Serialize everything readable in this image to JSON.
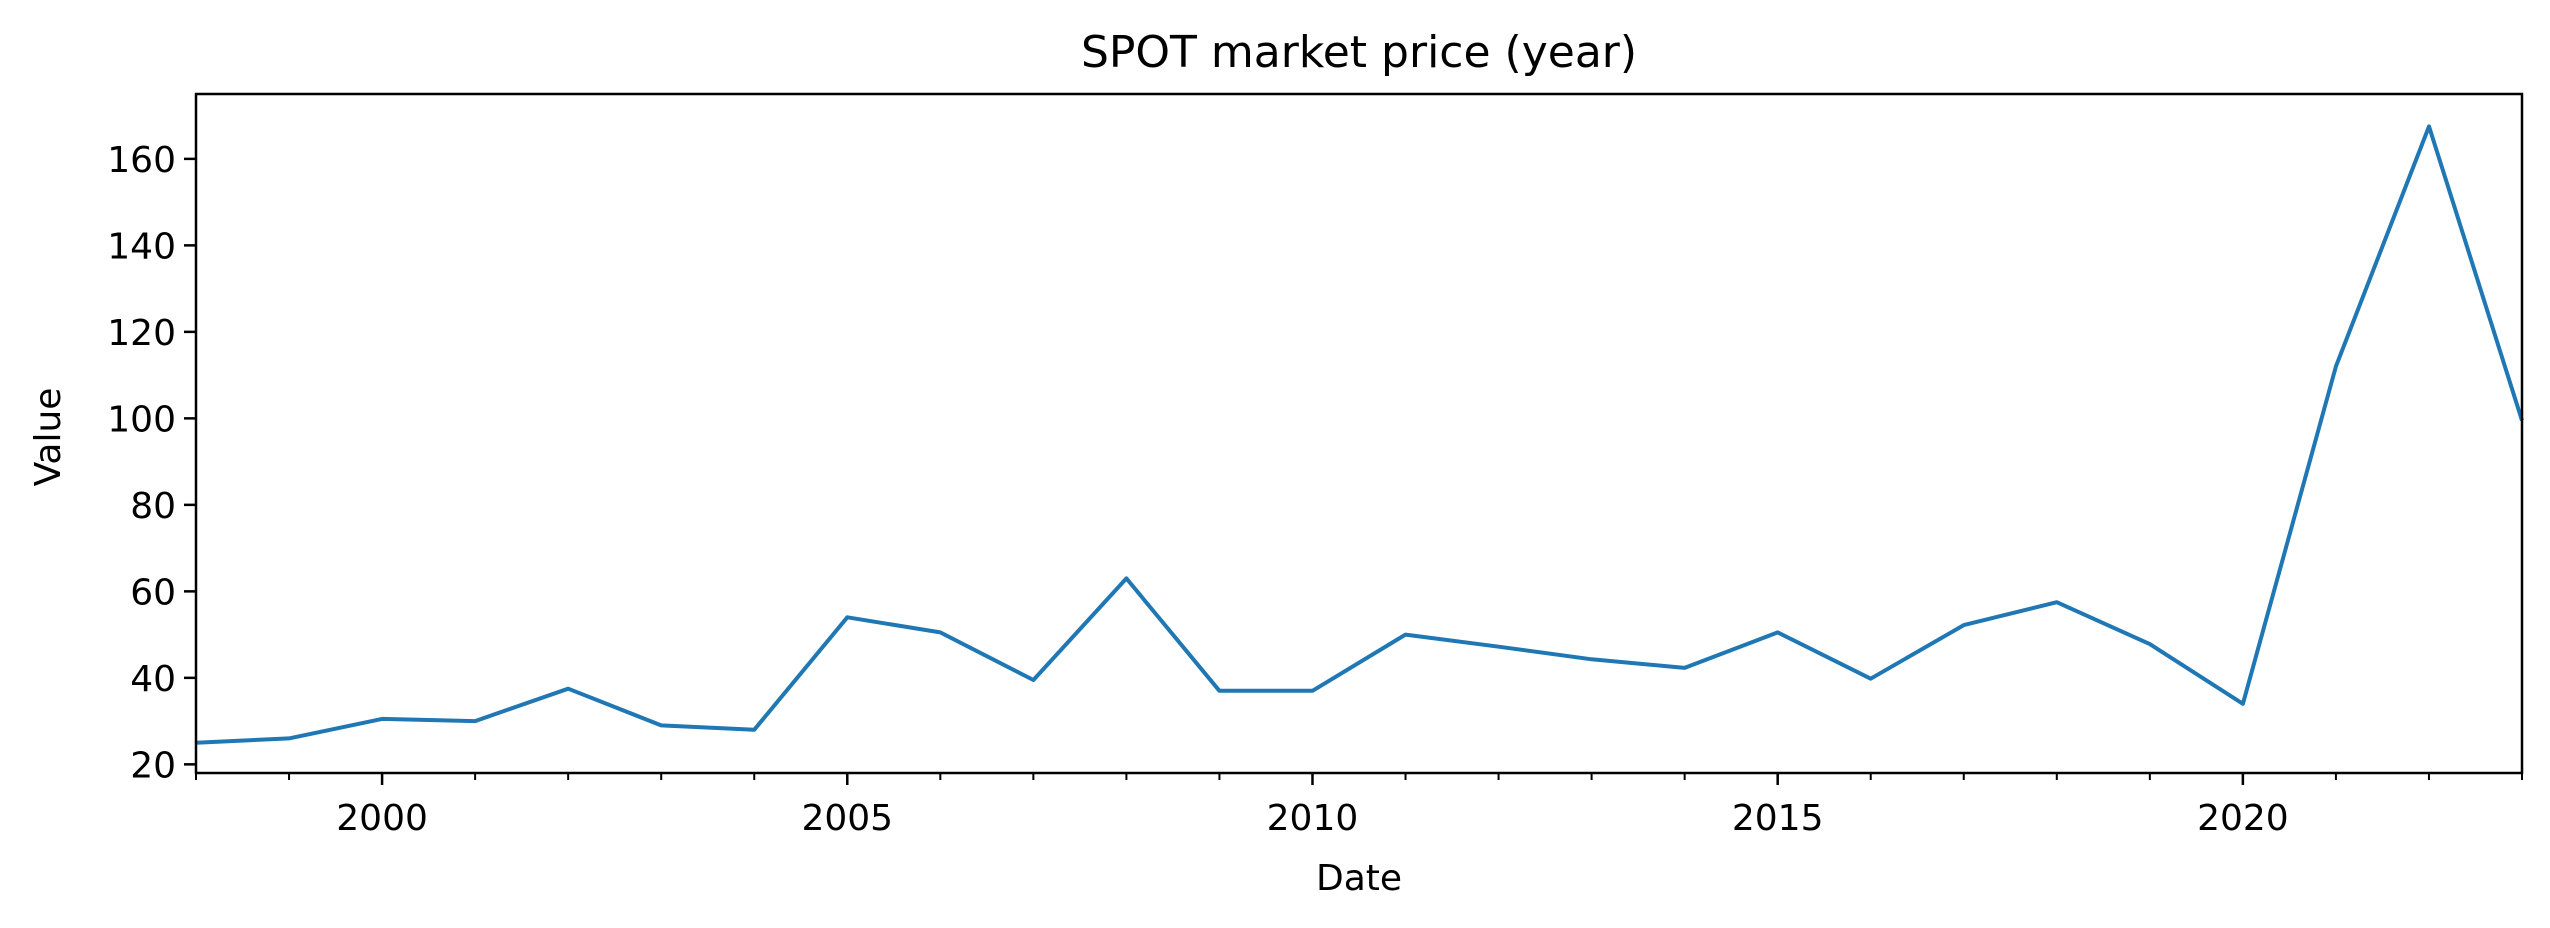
{
  "chart_data": {
    "type": "line",
    "title": "SPOT market price (year)",
    "xlabel": "Date",
    "ylabel": "Value",
    "xlim": [
      1998,
      2023
    ],
    "ylim": [
      18,
      175
    ],
    "x_major_ticks": [
      2000,
      2005,
      2010,
      2015,
      2020
    ],
    "y_ticks": [
      20,
      40,
      60,
      80,
      100,
      120,
      140,
      160
    ],
    "grid": false,
    "legend": "none",
    "series": [
      {
        "color": "#1f77b4",
        "points": [
          {
            "x": 1998,
            "y": 25
          },
          {
            "x": 1999,
            "y": 26
          },
          {
            "x": 2000,
            "y": 30.5
          },
          {
            "x": 2001,
            "y": 30
          },
          {
            "x": 2002,
            "y": 37.5
          },
          {
            "x": 2003,
            "y": 29
          },
          {
            "x": 2004,
            "y": 28
          },
          {
            "x": 2005,
            "y": 54
          },
          {
            "x": 2006,
            "y": 50.5
          },
          {
            "x": 2007,
            "y": 39.5
          },
          {
            "x": 2008,
            "y": 63
          },
          {
            "x": 2009,
            "y": 37
          },
          {
            "x": 2010,
            "y": 37
          },
          {
            "x": 2011,
            "y": 50
          },
          {
            "x": 2012,
            "y": 47.2
          },
          {
            "x": 2013,
            "y": 44.3
          },
          {
            "x": 2014,
            "y": 42.3
          },
          {
            "x": 2015,
            "y": 50.5
          },
          {
            "x": 2016,
            "y": 39.8
          },
          {
            "x": 2017,
            "y": 52.2
          },
          {
            "x": 2018,
            "y": 57.5
          },
          {
            "x": 2019,
            "y": 47.8
          },
          {
            "x": 2020,
            "y": 34
          },
          {
            "x": 2021,
            "y": 112
          },
          {
            "x": 2022,
            "y": 167.5
          },
          {
            "x": 2023,
            "y": 99.5
          }
        ]
      }
    ]
  }
}
